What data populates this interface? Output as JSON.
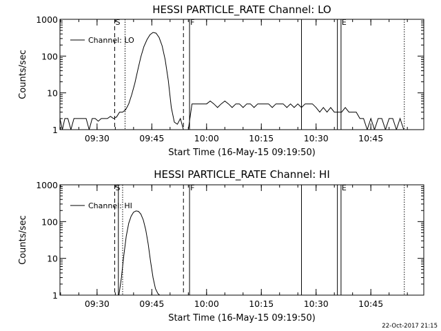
{
  "footer": {
    "timestamp": "22-Oct-2017 21:15"
  },
  "chart_data": [
    {
      "type": "line",
      "title": "HESSI PARTICLE_RATE Channel: LO",
      "xlabel": "Start Time (16-May-15 09:19:50)",
      "ylabel": "Counts/sec",
      "y_scale": "log",
      "xlim": [
        "09:19:50",
        "10:59:30"
      ],
      "ylim": [
        1,
        1000
      ],
      "x_tick_labels": [
        "09:30",
        "09:45",
        "10:00",
        "10:15",
        "10:30",
        "10:45"
      ],
      "y_tick_labels": [
        "1",
        "10",
        "100",
        "1000"
      ],
      "grid": false,
      "legend": "upper-left",
      "line_color": "#000000",
      "series": [
        {
          "name": "Channel: LO",
          "x": [
            "09:19:50",
            "09:20:30",
            "09:21:10",
            "09:22:00",
            "09:22:50",
            "09:23:40",
            "09:24:30",
            "09:25:20",
            "09:26:10",
            "09:27:00",
            "09:27:50",
            "09:28:40",
            "09:29:30",
            "09:30:20",
            "09:31:10",
            "09:32:00",
            "09:32:50",
            "09:33:40",
            "09:34:30",
            "09:35:20",
            "09:36:10",
            "09:37:00",
            "09:37:50",
            "09:38:40",
            "09:39:30",
            "09:40:20",
            "09:41:10",
            "09:42:00",
            "09:42:50",
            "09:43:40",
            "09:44:30",
            "09:45:20",
            "09:46:10",
            "09:47:00",
            "09:47:50",
            "09:48:40",
            "09:49:30",
            "09:50:20",
            "09:51:10",
            "09:52:00",
            "09:52:50",
            "09:53:40",
            "09:54:10",
            "09:55:00",
            "09:56:00",
            "09:57:00",
            "09:58:00",
            "09:59:00",
            "10:00:00",
            "10:01:00",
            "10:02:00",
            "10:03:00",
            "10:04:00",
            "10:05:00",
            "10:06:00",
            "10:07:00",
            "10:08:00",
            "10:09:00",
            "10:10:00",
            "10:11:00",
            "10:12:00",
            "10:13:00",
            "10:14:00",
            "10:15:00",
            "10:16:00",
            "10:17:00",
            "10:18:00",
            "10:19:00",
            "10:20:00",
            "10:21:00",
            "10:22:00",
            "10:23:00",
            "10:24:00",
            "10:25:00",
            "10:26:00",
            "10:27:00",
            "10:28:00",
            "10:29:00",
            "10:30:00",
            "10:31:00",
            "10:32:00",
            "10:33:00",
            "10:34:00",
            "10:35:00",
            "10:36:00",
            "10:37:00",
            "10:38:00",
            "10:39:00",
            "10:40:00",
            "10:41:00",
            "10:42:00",
            "10:43:00",
            "10:44:00",
            "10:45:00",
            "10:46:00",
            "10:47:00",
            "10:48:00",
            "10:49:00",
            "10:50:00",
            "10:51:00",
            "10:52:00",
            "10:53:00",
            "10:54:00"
          ],
          "y": [
            2,
            1,
            2,
            2,
            1,
            2,
            2,
            2,
            2,
            2,
            1,
            2,
            2,
            1.7,
            2,
            2,
            2,
            2.3,
            2,
            2.2,
            3,
            3,
            3.5,
            5,
            9,
            18,
            42,
            95,
            180,
            280,
            380,
            440,
            420,
            320,
            190,
            80,
            22,
            4,
            1.6,
            1.4,
            2,
            1,
            1,
            1,
            5,
            5,
            5,
            5,
            5,
            6,
            5,
            4,
            5,
            6,
            5,
            4,
            5,
            5,
            4,
            5,
            5,
            4,
            5,
            5,
            5,
            5,
            4,
            5,
            5,
            5,
            4,
            5,
            4,
            5,
            4,
            5,
            5,
            5,
            4,
            3,
            4,
            3,
            4,
            3,
            3,
            3,
            4,
            3,
            3,
            3,
            2,
            2,
            1,
            2,
            1,
            2,
            2,
            1,
            2,
            2,
            1,
            2,
            1
          ]
        }
      ],
      "markers": {
        "dashed": [
          "09:34:50",
          "09:53:40"
        ],
        "dotted": [
          "09:37:40",
          "10:54:10"
        ],
        "solid": [
          "09:55:20",
          "10:26:00",
          "10:35:50",
          "10:36:50"
        ],
        "labels": [
          {
            "text": "S",
            "x": "09:34:50"
          },
          {
            "text": "F",
            "x": "09:55:20"
          },
          {
            "text": "E",
            "x": "10:36:50"
          }
        ]
      }
    },
    {
      "type": "line",
      "title": "HESSI PARTICLE_RATE Channel: HI",
      "xlabel": "Start Time (16-May-15 09:19:50)",
      "ylabel": "Counts/sec",
      "y_scale": "log",
      "xlim": [
        "09:19:50",
        "10:59:30"
      ],
      "ylim": [
        1,
        1000
      ],
      "x_tick_labels": [
        "09:30",
        "09:45",
        "10:00",
        "10:15",
        "10:30",
        "10:45"
      ],
      "y_tick_labels": [
        "1",
        "10",
        "100",
        "1000"
      ],
      "grid": false,
      "legend": "upper-left",
      "line_color": "#000000",
      "series": [
        {
          "name": "Channel: HI",
          "x": [
            "09:36:00",
            "09:36:40",
            "09:37:20",
            "09:38:00",
            "09:38:40",
            "09:39:20",
            "09:40:00",
            "09:40:40",
            "09:41:20",
            "09:42:00",
            "09:42:40",
            "09:43:20",
            "09:44:00",
            "09:44:40",
            "09:45:20",
            "09:46:00",
            "09:46:40",
            "09:47:10"
          ],
          "y": [
            1,
            3,
            12,
            40,
            90,
            140,
            180,
            195,
            190,
            160,
            110,
            60,
            25,
            8,
            3,
            1.5,
            1.1,
            1
          ]
        }
      ],
      "markers": {
        "dashed": [
          "09:34:50",
          "09:53:40"
        ],
        "dotted": [
          "09:37:00",
          "10:54:10"
        ],
        "solid": [
          "09:35:50",
          "09:55:20",
          "10:26:00",
          "10:35:50",
          "10:36:50"
        ],
        "labels": [
          {
            "text": "S",
            "x": "09:34:50"
          },
          {
            "text": "F",
            "x": "09:55:20"
          },
          {
            "text": "E",
            "x": "10:36:50"
          }
        ]
      }
    }
  ]
}
